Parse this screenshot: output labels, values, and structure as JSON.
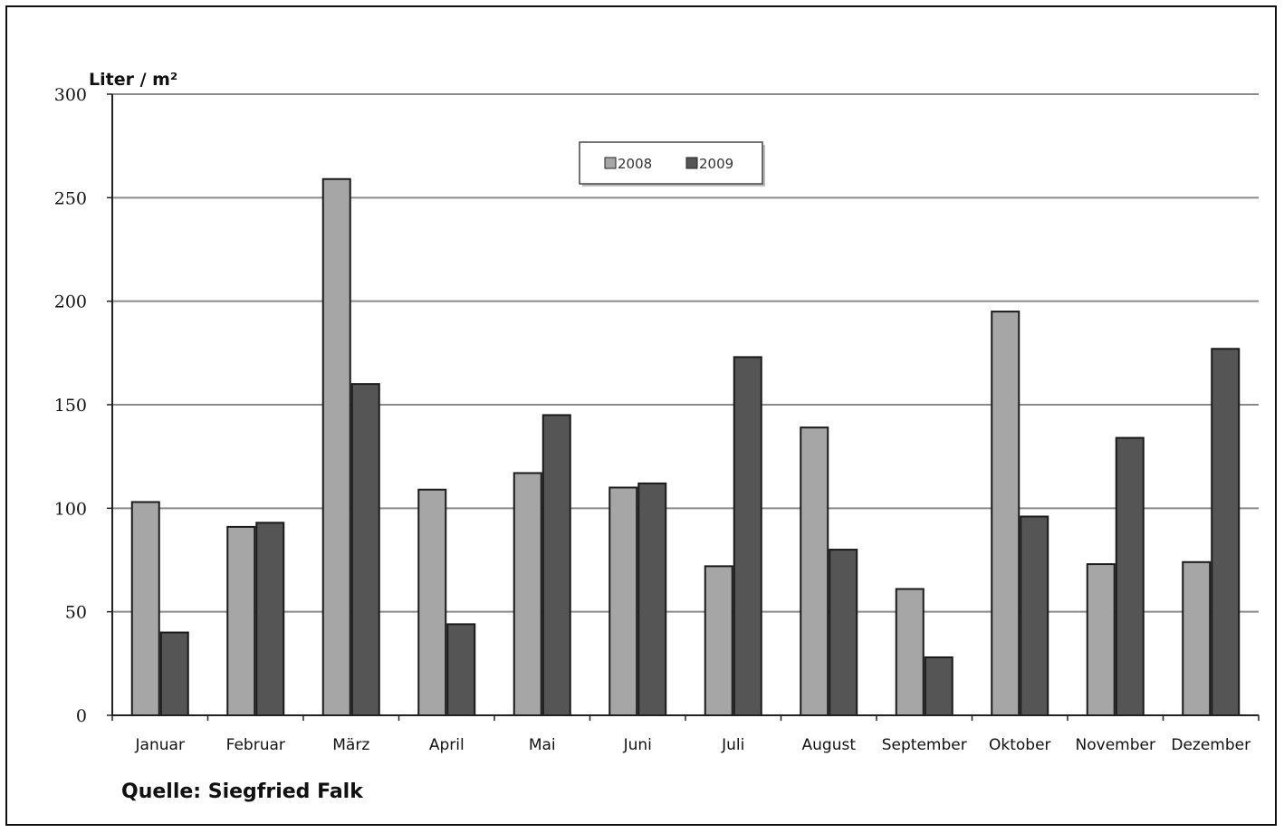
{
  "chart_data": {
    "type": "bar",
    "ylabel": "Liter / m²",
    "ylim": [
      0,
      300
    ],
    "yticks": [
      0,
      50,
      100,
      150,
      200,
      250,
      300
    ],
    "categories": [
      "Januar",
      "Februar",
      "März",
      "April",
      "Mai",
      "Juni",
      "Juli",
      "August",
      "September",
      "Oktober",
      "November",
      "Dezember"
    ],
    "series": [
      {
        "name": "2008",
        "color": "#a6a6a6",
        "values": [
          103,
          91,
          259,
          109,
          117,
          110,
          72,
          139,
          61,
          195,
          73,
          74
        ]
      },
      {
        "name": "2009",
        "color": "#555555",
        "values": [
          40,
          93,
          160,
          44,
          145,
          112,
          173,
          80,
          28,
          96,
          134,
          177
        ]
      }
    ],
    "grid": true,
    "legend_position": "top-center"
  },
  "source": "Quelle: Siegfried Falk"
}
